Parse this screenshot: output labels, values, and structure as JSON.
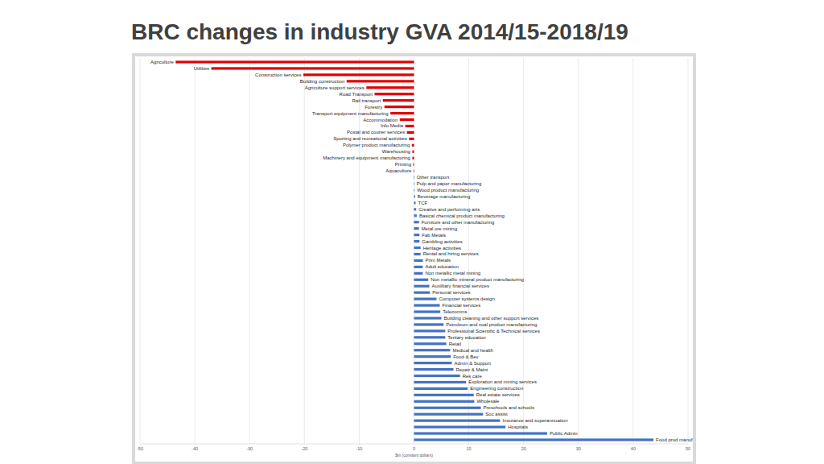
{
  "chart_data": {
    "type": "bar",
    "orientation": "horizontal",
    "title": "BRC changes in industry GVA 2014/15-2018/19",
    "x_label": "$m (constant dollars)",
    "categories": [
      "Agriculture",
      "Utilities",
      "Construction services",
      "Building construction",
      "Agriculture support services",
      "Road Transport",
      "Rail transport",
      "Forestry",
      "Transport equipment manufacturing",
      "Accommodation",
      "Info Media",
      "Postal and courier services",
      "Sporting and recreational activities",
      "Polymer product manufacturing",
      "Warehousing",
      "Machinery and equipment manufacturing",
      "Printing",
      "Aquaculture",
      "Other transport",
      "Pulp and paper manufacturing",
      "Wood product manufacturing",
      "Beverage manufacturing",
      "TCF",
      "Creative and performing arts",
      "Basical chemical product manufacturing",
      "Furniture and other manufacturing",
      "Metal ore mining",
      "Fab Metals",
      "Gambling activities",
      "Heritage activities",
      "Rental and hiring services",
      "Prim Metals",
      "Adult education",
      "Non metallic metal mining",
      "Non metallic mineral product manufacturing",
      "Auxilliary financial services",
      "Personal services",
      "Computer systems design",
      "Financial services",
      "Telecomms",
      "Building cleaning and other support services",
      "Petroleum and coal product manufacturing",
      "Professional Scientific & Technical services",
      "Tertiary education",
      "Retail",
      "Medical and health",
      "Food & Bev",
      "Admin & Support",
      "Repair & Maint",
      "Res care",
      "Exploration and mining services",
      "Engineering construction",
      "Real estate services",
      "Wholesale",
      "Preschools and schools",
      "Soc assist",
      "Insurance and superannuation",
      "Hospitals",
      "Public Admin",
      "Food prod manuf"
    ],
    "values": [
      -43.5,
      -37,
      -20.2,
      -12.3,
      -8.7,
      -7.2,
      -5.7,
      -5.4,
      -4.3,
      -2.6,
      -1.6,
      -1.3,
      -0.9,
      -0.4,
      -0.3,
      -0.3,
      -0.15,
      -0.1,
      0.03,
      0.05,
      0.1,
      0.2,
      0.3,
      0.4,
      0.5,
      0.9,
      0.9,
      1.0,
      1.0,
      1.2,
      1.2,
      1.6,
      1.6,
      1.6,
      2.6,
      2.8,
      2.9,
      4.1,
      4.7,
      4.8,
      5.0,
      5.4,
      5.7,
      5.7,
      5.9,
      6.6,
      6.7,
      6.9,
      7.2,
      8.4,
      9.5,
      9.8,
      10.9,
      11.0,
      12.2,
      12.6,
      15.7,
      16.7,
      24.3,
      43.7
    ],
    "colors": [
      "#e00000",
      "#e00000",
      "#e00000",
      "#e00000",
      "#e00000",
      "#e00000",
      "#e00000",
      "#e00000",
      "#e00000",
      "#e00000",
      "#e00000",
      "#e00000",
      "#e00000",
      "#e00000",
      "#e00000",
      "#e00000",
      "#e00000",
      "#e00000",
      "#4472c4",
      "#4472c4",
      "#4472c4",
      "#4472c4",
      "#4472c4",
      "#4472c4",
      "#4472c4",
      "#4472c4",
      "#4472c4",
      "#4472c4",
      "#4472c4",
      "#4472c4",
      "#4472c4",
      "#4472c4",
      "#4472c4",
      "#4472c4",
      "#4472c4",
      "#4472c4",
      "#4472c4",
      "#4472c4",
      "#4472c4",
      "#4472c4",
      "#4472c4",
      "#4472c4",
      "#4472c4",
      "#4472c4",
      "#4472c4",
      "#4472c4",
      "#4472c4",
      "#4472c4",
      "#4472c4",
      "#4472c4",
      "#4472c4",
      "#4472c4",
      "#4472c4",
      "#4472c4",
      "#4472c4",
      "#4472c4",
      "#4472c4",
      "#4472c4",
      "#4472c4",
      "#4472c4"
    ],
    "xlim": [
      -50,
      50
    ],
    "xticks": [
      -50,
      -40,
      -30,
      -20,
      -10,
      0,
      10,
      20,
      30,
      40,
      50
    ],
    "grid": true
  }
}
